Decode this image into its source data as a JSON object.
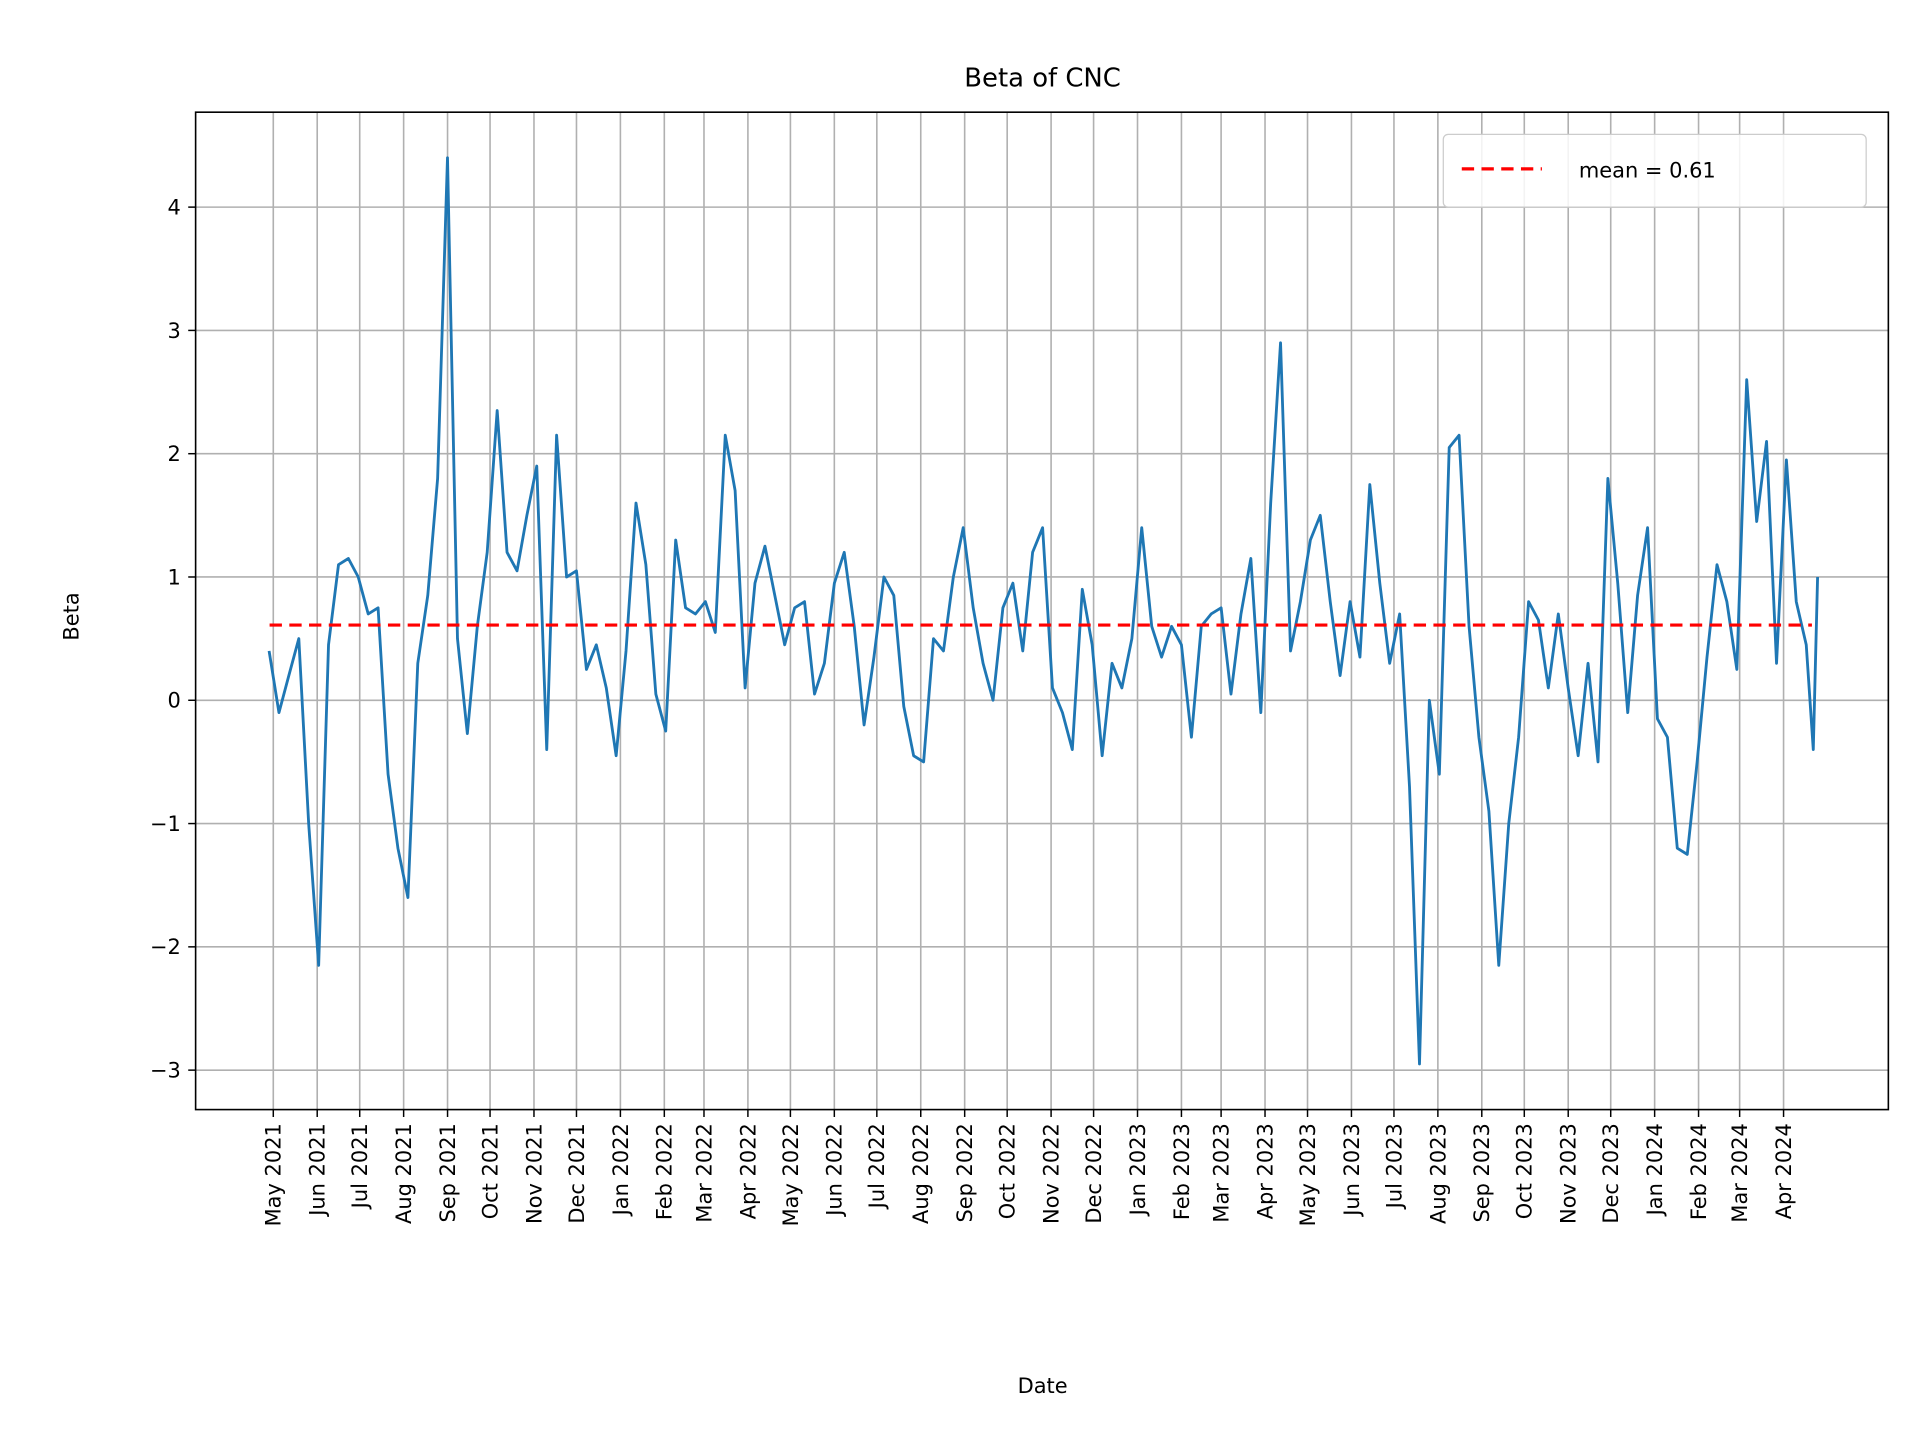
{
  "chart_data": {
    "type": "line",
    "title": "Beta of CNC",
    "xlabel": "Date",
    "ylabel": "Beta",
    "ylim": [
      -3.3,
      4.75
    ],
    "grid": true,
    "legend_placement": "upper right",
    "yticks": [
      "4",
      "3",
      "2",
      "1",
      "0",
      "−1",
      "−2",
      "−3"
    ],
    "ytick_values": [
      4,
      3,
      2,
      1,
      0,
      -1,
      -2,
      -3
    ],
    "xticks": [
      {
        "date": "2021-05-01",
        "label": "May 2021"
      },
      {
        "date": "2021-06-01",
        "label": "Jun 2021"
      },
      {
        "date": "2021-07-01",
        "label": "Jul 2021"
      },
      {
        "date": "2021-08-01",
        "label": "Aug 2021"
      },
      {
        "date": "2021-09-01",
        "label": "Sep 2021"
      },
      {
        "date": "2021-10-01",
        "label": "Oct 2021"
      },
      {
        "date": "2021-11-01",
        "label": "Nov 2021"
      },
      {
        "date": "2021-12-01",
        "label": "Dec 2021"
      },
      {
        "date": "2022-01-01",
        "label": "Jan 2022"
      },
      {
        "date": "2022-02-01",
        "label": "Feb 2022"
      },
      {
        "date": "2022-03-01",
        "label": "Mar 2022"
      },
      {
        "date": "2022-04-01",
        "label": "Apr 2022"
      },
      {
        "date": "2022-05-01",
        "label": "May 2022"
      },
      {
        "date": "2022-06-01",
        "label": "Jun 2022"
      },
      {
        "date": "2022-07-01",
        "label": "Jul 2022"
      },
      {
        "date": "2022-08-01",
        "label": "Aug 2022"
      },
      {
        "date": "2022-09-01",
        "label": "Sep 2022"
      },
      {
        "date": "2022-10-01",
        "label": "Oct 2022"
      },
      {
        "date": "2022-11-01",
        "label": "Nov 2022"
      },
      {
        "date": "2022-12-01",
        "label": "Dec 2022"
      },
      {
        "date": "2023-01-01",
        "label": "Jan 2023"
      },
      {
        "date": "2023-02-01",
        "label": "Feb 2023"
      },
      {
        "date": "2023-03-01",
        "label": "Mar 2023"
      },
      {
        "date": "2023-04-01",
        "label": "Apr 2023"
      },
      {
        "date": "2023-05-01",
        "label": "May 2023"
      },
      {
        "date": "2023-06-01",
        "label": "Jun 2023"
      },
      {
        "date": "2023-07-01",
        "label": "Jul 2023"
      },
      {
        "date": "2023-08-01",
        "label": "Aug 2023"
      },
      {
        "date": "2023-09-01",
        "label": "Sep 2023"
      },
      {
        "date": "2023-10-01",
        "label": "Oct 2023"
      },
      {
        "date": "2023-11-01",
        "label": "Nov 2023"
      },
      {
        "date": "2023-12-01",
        "label": "Dec 2023"
      },
      {
        "date": "2024-01-01",
        "label": "Jan 2024"
      },
      {
        "date": "2024-02-01",
        "label": "Feb 2024"
      },
      {
        "date": "2024-03-01",
        "label": "Mar 2024"
      },
      {
        "date": "2024-04-01",
        "label": "Apr 2024"
      }
    ],
    "series": [
      {
        "color": "#1f77b4",
        "points": [
          [
            "2021-04-28",
            0.4
          ],
          [
            "2021-05-05",
            -0.1
          ],
          [
            "2021-05-12",
            0.2
          ],
          [
            "2021-05-19",
            0.5
          ],
          [
            "2021-05-26",
            -1.0
          ],
          [
            "2021-06-02",
            -2.15
          ],
          [
            "2021-06-09",
            0.45
          ],
          [
            "2021-06-16",
            1.1
          ],
          [
            "2021-06-23",
            1.15
          ],
          [
            "2021-06-30",
            1.0
          ],
          [
            "2021-07-07",
            0.7
          ],
          [
            "2021-07-14",
            0.75
          ],
          [
            "2021-07-21",
            -0.6
          ],
          [
            "2021-07-28",
            -1.2
          ],
          [
            "2021-08-04",
            -1.6
          ],
          [
            "2021-08-11",
            0.3
          ],
          [
            "2021-08-18",
            0.85
          ],
          [
            "2021-08-25",
            1.8
          ],
          [
            "2021-09-01",
            4.4
          ],
          [
            "2021-09-08",
            0.5
          ],
          [
            "2021-09-15",
            -0.27
          ],
          [
            "2021-09-22",
            0.6
          ],
          [
            "2021-09-29",
            1.2
          ],
          [
            "2021-10-06",
            2.35
          ],
          [
            "2021-10-13",
            1.2
          ],
          [
            "2021-10-20",
            1.05
          ],
          [
            "2021-10-27",
            1.5
          ],
          [
            "2021-11-03",
            1.9
          ],
          [
            "2021-11-10",
            -0.4
          ],
          [
            "2021-11-17",
            2.15
          ],
          [
            "2021-11-24",
            1.0
          ],
          [
            "2021-12-01",
            1.05
          ],
          [
            "2021-12-08",
            0.25
          ],
          [
            "2021-12-15",
            0.45
          ],
          [
            "2021-12-22",
            0.1
          ],
          [
            "2021-12-29",
            -0.45
          ],
          [
            "2022-01-05",
            0.4
          ],
          [
            "2022-01-12",
            1.6
          ],
          [
            "2022-01-19",
            1.1
          ],
          [
            "2022-01-26",
            0.05
          ],
          [
            "2022-02-02",
            -0.25
          ],
          [
            "2022-02-09",
            1.3
          ],
          [
            "2022-02-16",
            0.75
          ],
          [
            "2022-02-23",
            0.7
          ],
          [
            "2022-03-02",
            0.8
          ],
          [
            "2022-03-09",
            0.55
          ],
          [
            "2022-03-16",
            2.15
          ],
          [
            "2022-03-23",
            1.7
          ],
          [
            "2022-03-30",
            0.1
          ],
          [
            "2022-04-06",
            0.95
          ],
          [
            "2022-04-13",
            1.25
          ],
          [
            "2022-04-20",
            0.85
          ],
          [
            "2022-04-27",
            0.45
          ],
          [
            "2022-05-04",
            0.75
          ],
          [
            "2022-05-11",
            0.8
          ],
          [
            "2022-05-18",
            0.05
          ],
          [
            "2022-05-25",
            0.3
          ],
          [
            "2022-06-01",
            0.95
          ],
          [
            "2022-06-08",
            1.2
          ],
          [
            "2022-06-15",
            0.6
          ],
          [
            "2022-06-22",
            -0.2
          ],
          [
            "2022-06-29",
            0.35
          ],
          [
            "2022-07-06",
            1.0
          ],
          [
            "2022-07-13",
            0.85
          ],
          [
            "2022-07-20",
            -0.05
          ],
          [
            "2022-07-27",
            -0.45
          ],
          [
            "2022-08-03",
            -0.5
          ],
          [
            "2022-08-10",
            0.5
          ],
          [
            "2022-08-17",
            0.4
          ],
          [
            "2022-08-24",
            1.0
          ],
          [
            "2022-08-31",
            1.4
          ],
          [
            "2022-09-07",
            0.75
          ],
          [
            "2022-09-14",
            0.3
          ],
          [
            "2022-09-21",
            0.0
          ],
          [
            "2022-09-28",
            0.75
          ],
          [
            "2022-10-05",
            0.95
          ],
          [
            "2022-10-12",
            0.4
          ],
          [
            "2022-10-19",
            1.2
          ],
          [
            "2022-10-26",
            1.4
          ],
          [
            "2022-11-02",
            0.1
          ],
          [
            "2022-11-09",
            -0.1
          ],
          [
            "2022-11-16",
            -0.4
          ],
          [
            "2022-11-23",
            0.9
          ],
          [
            "2022-11-30",
            0.45
          ],
          [
            "2022-12-07",
            -0.45
          ],
          [
            "2022-12-14",
            0.3
          ],
          [
            "2022-12-21",
            0.1
          ],
          [
            "2022-12-28",
            0.5
          ],
          [
            "2023-01-04",
            1.4
          ],
          [
            "2023-01-11",
            0.6
          ],
          [
            "2023-01-18",
            0.35
          ],
          [
            "2023-01-25",
            0.6
          ],
          [
            "2023-02-01",
            0.45
          ],
          [
            "2023-02-08",
            -0.3
          ],
          [
            "2023-02-15",
            0.6
          ],
          [
            "2023-02-22",
            0.7
          ],
          [
            "2023-03-01",
            0.75
          ],
          [
            "2023-03-08",
            0.05
          ],
          [
            "2023-03-15",
            0.7
          ],
          [
            "2023-03-22",
            1.15
          ],
          [
            "2023-03-29",
            -0.1
          ],
          [
            "2023-04-05",
            1.6
          ],
          [
            "2023-04-12",
            2.9
          ],
          [
            "2023-04-19",
            0.4
          ],
          [
            "2023-04-26",
            0.8
          ],
          [
            "2023-05-03",
            1.3
          ],
          [
            "2023-05-10",
            1.5
          ],
          [
            "2023-05-17",
            0.8
          ],
          [
            "2023-05-24",
            0.2
          ],
          [
            "2023-05-31",
            0.8
          ],
          [
            "2023-06-07",
            0.35
          ],
          [
            "2023-06-14",
            1.75
          ],
          [
            "2023-06-21",
            0.95
          ],
          [
            "2023-06-28",
            0.3
          ],
          [
            "2023-07-05",
            0.7
          ],
          [
            "2023-07-12",
            -0.7
          ],
          [
            "2023-07-19",
            -2.95
          ],
          [
            "2023-07-26",
            0.0
          ],
          [
            "2023-08-02",
            -0.6
          ],
          [
            "2023-08-09",
            2.05
          ],
          [
            "2023-08-16",
            2.15
          ],
          [
            "2023-08-23",
            0.6
          ],
          [
            "2023-08-30",
            -0.3
          ],
          [
            "2023-09-06",
            -0.9
          ],
          [
            "2023-09-13",
            -2.15
          ],
          [
            "2023-09-20",
            -1.0
          ],
          [
            "2023-09-27",
            -0.3
          ],
          [
            "2023-10-04",
            0.8
          ],
          [
            "2023-10-11",
            0.65
          ],
          [
            "2023-10-18",
            0.1
          ],
          [
            "2023-10-25",
            0.7
          ],
          [
            "2023-11-01",
            0.1
          ],
          [
            "2023-11-08",
            -0.45
          ],
          [
            "2023-11-15",
            0.3
          ],
          [
            "2023-11-22",
            -0.5
          ],
          [
            "2023-11-29",
            1.8
          ],
          [
            "2023-12-06",
            0.95
          ],
          [
            "2023-12-13",
            -0.1
          ],
          [
            "2023-12-20",
            0.85
          ],
          [
            "2023-12-27",
            1.4
          ],
          [
            "2024-01-03",
            -0.15
          ],
          [
            "2024-01-10",
            -0.3
          ],
          [
            "2024-01-17",
            -1.2
          ],
          [
            "2024-01-24",
            -1.25
          ],
          [
            "2024-01-31",
            -0.5
          ],
          [
            "2024-02-07",
            0.35
          ],
          [
            "2024-02-14",
            1.1
          ],
          [
            "2024-02-21",
            0.8
          ],
          [
            "2024-02-28",
            0.25
          ],
          [
            "2024-03-06",
            2.6
          ],
          [
            "2024-03-13",
            1.45
          ],
          [
            "2024-03-20",
            2.1
          ],
          [
            "2024-03-27",
            0.3
          ],
          [
            "2024-04-03",
            1.95
          ],
          [
            "2024-04-10",
            0.8
          ],
          [
            "2024-04-17",
            0.45
          ],
          [
            "2024-04-22",
            -0.4
          ],
          [
            "2024-04-25",
            1.0
          ]
        ]
      }
    ],
    "mean": {
      "value": 0.61,
      "label": "mean = 0.61",
      "color": "#ff0000",
      "style": "dashed"
    }
  }
}
